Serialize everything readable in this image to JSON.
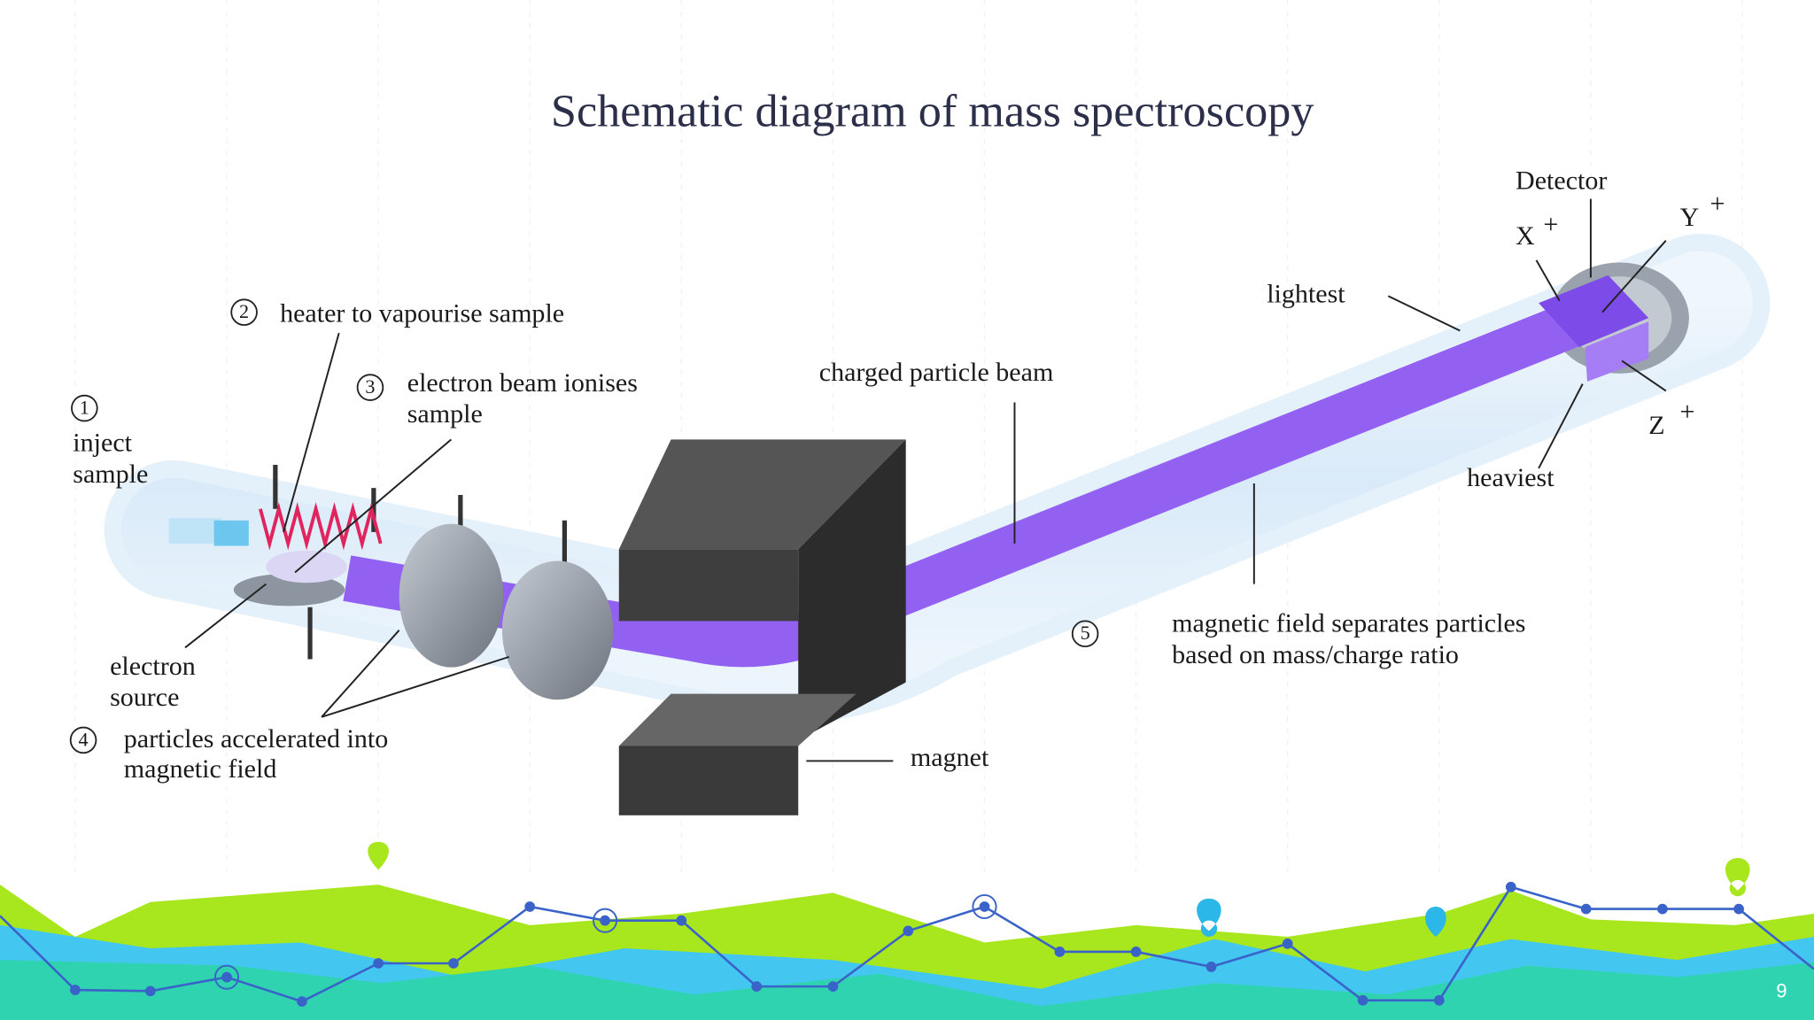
{
  "title": "Schematic diagram of mass spectroscopy",
  "steps": [
    {
      "number": "1",
      "lines": [
        "inject",
        "sample"
      ]
    },
    {
      "number": "2",
      "lines": [
        "heater to vapourise sample"
      ]
    },
    {
      "number": "3",
      "lines": [
        "electron beam ionises",
        "sample"
      ]
    },
    {
      "number": "4",
      "lines": [
        "particles accelerated into",
        "magnetic field"
      ]
    },
    {
      "number": "5",
      "lines": [
        "magnetic field separates particles",
        "based on mass/charge ratio"
      ]
    }
  ],
  "parts": {
    "electron_source": [
      "electron",
      "source"
    ],
    "beam": "charged particle beam",
    "magnet": "magnet",
    "lightest": "lightest",
    "heaviest": "heaviest",
    "detector": "Detector"
  },
  "ions": [
    {
      "symbol": "X",
      "charge": "+"
    },
    {
      "symbol": "Y",
      "charge": "+"
    },
    {
      "symbol": "Z",
      "charge": "+"
    }
  ],
  "page_number": "9"
}
